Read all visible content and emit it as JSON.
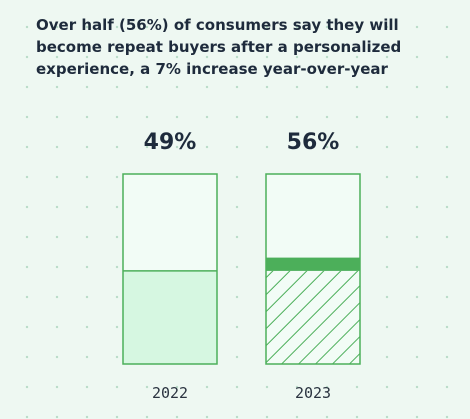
{
  "title": "Over half (56%) of consumers say they will become repeat buyers after a personalized experience, a 7% increase year-over-year",
  "colors": {
    "background": "#eef8f2",
    "bar_outline": "#4caf5a",
    "bar_empty": "#f2fcf6",
    "bar_fill": "#d6f7e1",
    "increase_band": "#4caf5a",
    "hatch": "#4caf5a"
  },
  "chart_data": {
    "type": "bar",
    "categories": [
      "2022",
      "2023"
    ],
    "values": [
      49,
      56
    ],
    "value_labels": [
      "49%",
      "56%"
    ],
    "ylim": [
      0,
      100
    ],
    "grid": false,
    "annotations": [
      "7% increase year-over-year"
    ]
  }
}
